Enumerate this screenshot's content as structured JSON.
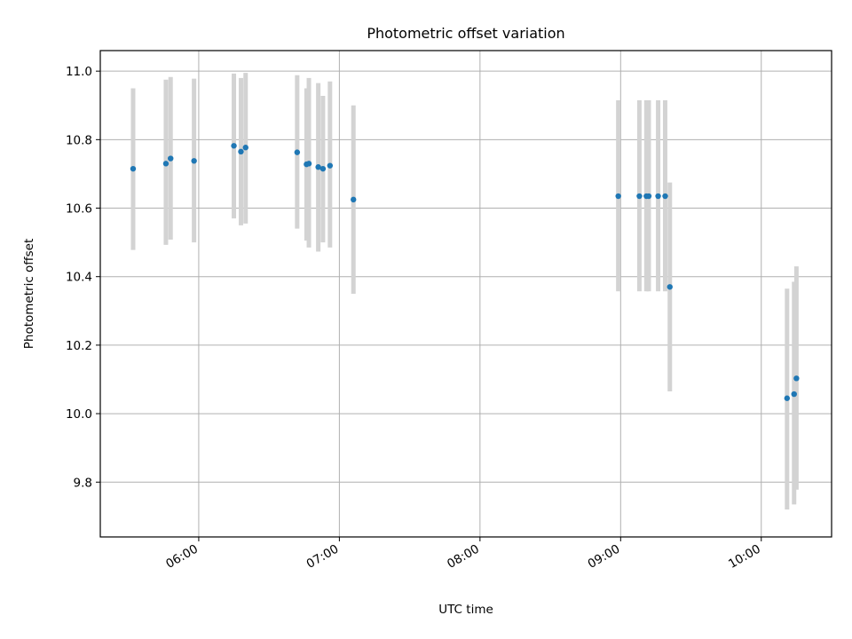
{
  "chart_data": {
    "type": "scatter",
    "title": "Photometric offset variation",
    "xlabel": "UTC time",
    "ylabel": "Photometric offset",
    "x_axis": {
      "type": "time",
      "range": [
        "05:18",
        "10:30"
      ],
      "ticks": [
        "06:00",
        "07:00",
        "08:00",
        "09:00",
        "10:00"
      ]
    },
    "y_axis": {
      "range": [
        9.64,
        11.06
      ],
      "ticks": [
        "9.8",
        "10.0",
        "10.2",
        "10.4",
        "10.6",
        "10.8",
        "11.0"
      ]
    },
    "grid": true,
    "legend": "none",
    "colors": {
      "points": "#1f77b4",
      "error_bars": "#d3d3d3",
      "grid": "#b0b0b0"
    },
    "points": [
      {
        "x": "05:32",
        "y": 10.715,
        "ylow": 10.478,
        "yhigh": 10.95
      },
      {
        "x": "05:46",
        "y": 10.73,
        "ylow": 10.493,
        "yhigh": 10.975
      },
      {
        "x": "05:48",
        "y": 10.745,
        "ylow": 10.508,
        "yhigh": 10.983
      },
      {
        "x": "05:58",
        "y": 10.738,
        "ylow": 10.5,
        "yhigh": 10.978
      },
      {
        "x": "06:15",
        "y": 10.782,
        "ylow": 10.57,
        "yhigh": 10.993
      },
      {
        "x": "06:18",
        "y": 10.765,
        "ylow": 10.55,
        "yhigh": 10.98
      },
      {
        "x": "06:20",
        "y": 10.777,
        "ylow": 10.555,
        "yhigh": 10.995
      },
      {
        "x": "06:42",
        "y": 10.763,
        "ylow": 10.54,
        "yhigh": 10.988
      },
      {
        "x": "06:46",
        "y": 10.728,
        "ylow": 10.505,
        "yhigh": 10.95
      },
      {
        "x": "06:47",
        "y": 10.73,
        "ylow": 10.485,
        "yhigh": 10.98
      },
      {
        "x": "06:51",
        "y": 10.72,
        "ylow": 10.473,
        "yhigh": 10.965
      },
      {
        "x": "06:53",
        "y": 10.715,
        "ylow": 10.5,
        "yhigh": 10.928
      },
      {
        "x": "06:56",
        "y": 10.724,
        "ylow": 10.485,
        "yhigh": 10.97
      },
      {
        "x": "07:06",
        "y": 10.625,
        "ylow": 10.35,
        "yhigh": 10.9
      },
      {
        "x": "08:59",
        "y": 10.635,
        "ylow": 10.357,
        "yhigh": 10.915
      },
      {
        "x": "09:08",
        "y": 10.635,
        "ylow": 10.357,
        "yhigh": 10.915
      },
      {
        "x": "09:11",
        "y": 10.635,
        "ylow": 10.357,
        "yhigh": 10.915
      },
      {
        "x": "09:12",
        "y": 10.635,
        "ylow": 10.357,
        "yhigh": 10.915
      },
      {
        "x": "09:16",
        "y": 10.635,
        "ylow": 10.357,
        "yhigh": 10.915
      },
      {
        "x": "09:19",
        "y": 10.635,
        "ylow": 10.357,
        "yhigh": 10.915
      },
      {
        "x": "09:21",
        "y": 10.37,
        "ylow": 10.065,
        "yhigh": 10.675
      },
      {
        "x": "10:11",
        "y": 10.045,
        "ylow": 9.72,
        "yhigh": 10.365
      },
      {
        "x": "10:14",
        "y": 10.057,
        "ylow": 9.735,
        "yhigh": 10.385
      },
      {
        "x": "10:15",
        "y": 10.103,
        "ylow": 9.778,
        "yhigh": 10.43
      }
    ]
  }
}
